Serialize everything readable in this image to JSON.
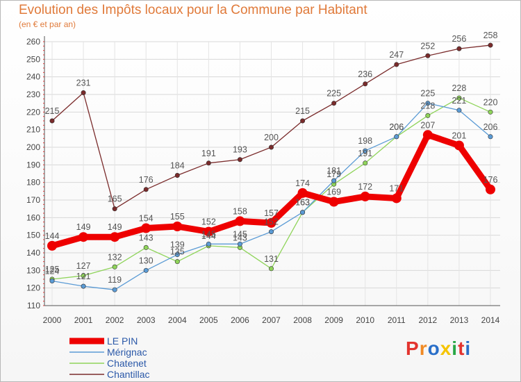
{
  "title": "Evolution des Impôts locaux pour la Commune par Habitant",
  "subtitle": "(en € et par an)",
  "logo": {
    "text": "Proxiti",
    "colors": [
      "#e3342f",
      "#f08a24",
      "#2a6fc9",
      "#f5c400",
      "#28a745",
      "#e3342f",
      "#2a6fc9"
    ]
  },
  "chart_data": {
    "type": "line",
    "title": "Evolution des Impôts locaux pour la Commune par Habitant",
    "ylabel": "(en € et par an)",
    "xlabel": "",
    "ylim": [
      110,
      260
    ],
    "yticks": [
      110,
      120,
      130,
      140,
      150,
      160,
      170,
      180,
      190,
      200,
      210,
      220,
      230,
      240,
      250,
      260
    ],
    "categories": [
      "2000",
      "2001",
      "2002",
      "2003",
      "2004",
      "2005",
      "2006",
      "2007",
      "2008",
      "2009",
      "2010",
      "2011",
      "2012",
      "2013",
      "2014"
    ],
    "legend_position": "bottom-left",
    "series": [
      {
        "name": "Chantillac",
        "color": "#7a2b2b",
        "values": [
          215,
          231,
          165,
          176,
          184,
          191,
          193,
          200,
          215,
          225,
          236,
          247,
          252,
          256,
          258
        ]
      },
      {
        "name": "Chatenet",
        "color": "#8fd45a",
        "values": [
          125,
          127,
          132,
          143,
          135,
          144,
          143,
          131,
          163,
          179,
          191,
          206,
          218,
          228,
          220
        ]
      },
      {
        "name": "Mérignac",
        "color": "#5b9bd5",
        "values": [
          124,
          121,
          119,
          130,
          139,
          145,
          145,
          152,
          163,
          181,
          198,
          206,
          225,
          221,
          206
        ]
      },
      {
        "name": "LE PIN",
        "color": "#ee0000",
        "values": [
          144,
          149,
          149,
          154,
          155,
          152,
          158,
          157,
          174,
          169,
          172,
          171,
          207,
          201,
          176
        ]
      }
    ],
    "legend_order": [
      "LE PIN",
      "Mérignac",
      "Chatenet",
      "Chantillac"
    ]
  }
}
